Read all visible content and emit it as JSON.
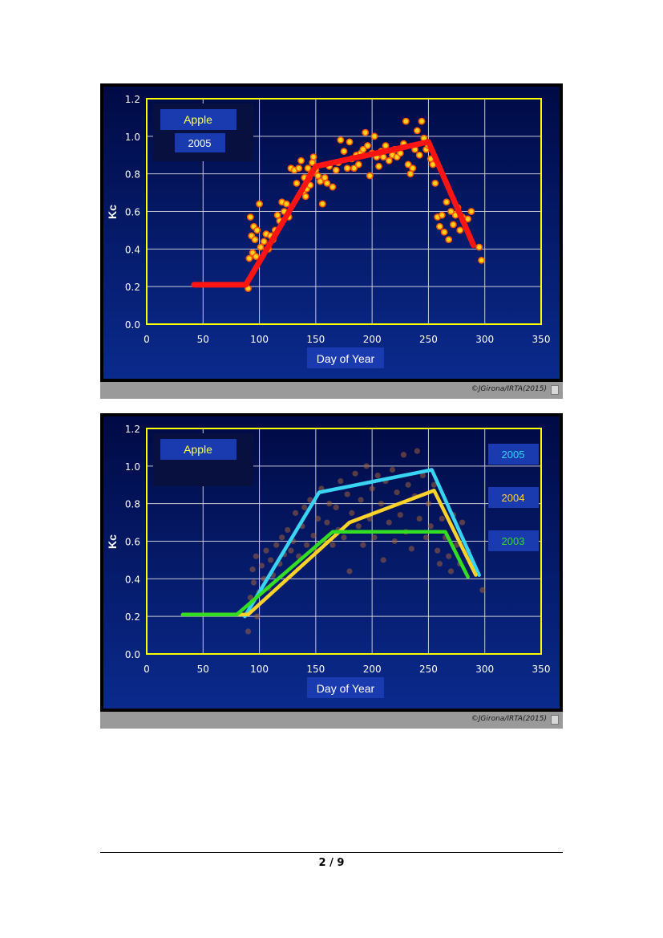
{
  "chart_data": [
    {
      "type": "scatter",
      "label_boxes": [
        "Apple",
        "2005"
      ],
      "xlabel": "Day of Year",
      "ylabel": "Kc",
      "xlim": [
        0,
        350
      ],
      "ylim": [
        0,
        1.2
      ],
      "xticks": [
        "0",
        "50",
        "100",
        "150",
        "200",
        "250",
        "300",
        "350"
      ],
      "yticks": [
        "0.0",
        "0.2",
        "0.4",
        "0.6",
        "0.8",
        "1.0",
        "1.2"
      ],
      "grid": true,
      "credit": "©JGirona/IRTA(2015)",
      "colors": {
        "points": "#ffd21e",
        "point_edge": "#ff5a00",
        "fit": "#ff1414",
        "plot_bg": "#0a1a66",
        "axis": "#ffff00"
      },
      "series": [
        {
          "name": "",
          "kind": "points",
          "x": [
            90,
            91,
            92,
            93,
            94,
            95,
            96,
            97,
            98,
            100,
            101,
            104,
            106,
            108,
            110,
            112,
            114,
            116,
            118,
            120,
            122,
            124,
            126,
            128,
            131,
            133,
            135,
            137,
            139,
            140,
            141,
            142,
            143,
            144,
            145,
            146,
            147,
            148,
            150,
            152,
            154,
            156,
            158,
            160,
            162,
            165,
            168,
            170,
            172,
            175,
            178,
            180,
            182,
            184,
            186,
            188,
            190,
            192,
            194,
            196,
            198,
            200,
            202,
            204,
            206,
            208,
            210,
            212,
            215,
            218,
            220,
            222,
            225,
            228,
            230,
            232,
            234,
            236,
            238,
            240,
            242,
            244,
            246,
            248,
            250,
            252,
            254,
            256,
            258,
            260,
            262,
            264,
            266,
            268,
            270,
            272,
            274,
            276,
            278,
            280,
            285,
            288,
            295,
            297
          ],
          "y": [
            0.19,
            0.35,
            0.57,
            0.47,
            0.38,
            0.52,
            0.45,
            0.36,
            0.5,
            0.64,
            0.41,
            0.44,
            0.48,
            0.4,
            0.47,
            0.45,
            0.5,
            0.58,
            0.55,
            0.65,
            0.6,
            0.64,
            0.57,
            0.83,
            0.82,
            0.75,
            0.83,
            0.87,
            0.71,
            0.78,
            0.68,
            0.72,
            0.83,
            0.78,
            0.74,
            0.8,
            0.86,
            0.89,
            0.82,
            0.79,
            0.76,
            0.64,
            0.78,
            0.75,
            0.84,
            0.73,
            0.82,
            0.86,
            0.98,
            0.92,
            0.83,
            0.97,
            0.88,
            0.83,
            0.9,
            0.85,
            0.91,
            0.93,
            1.02,
            0.95,
            0.79,
            0.91,
            1.0,
            0.89,
            0.84,
            0.92,
            0.89,
            0.95,
            0.87,
            0.9,
            0.93,
            0.89,
            0.91,
            0.96,
            1.08,
            0.85,
            0.8,
            0.83,
            0.93,
            1.03,
            0.9,
            1.08,
            0.99,
            0.93,
            0.95,
            0.88,
            0.85,
            0.75,
            0.57,
            0.52,
            0.58,
            0.49,
            0.65,
            0.45,
            0.6,
            0.53,
            0.58,
            0.62,
            0.5,
            0.57,
            0.56,
            0.6,
            0.41,
            0.34
          ]
        },
        {
          "name": "",
          "kind": "line",
          "x": [
            42,
            88,
            150,
            250,
            290
          ],
          "y": [
            0.21,
            0.21,
            0.84,
            0.97,
            0.42
          ]
        }
      ]
    },
    {
      "type": "line",
      "label_boxes": [
        "Apple"
      ],
      "xlabel": "Day of Year",
      "ylabel": "Kc",
      "xlim": [
        0,
        350
      ],
      "ylim": [
        0,
        1.2
      ],
      "xticks": [
        "0",
        "50",
        "100",
        "150",
        "200",
        "250",
        "300",
        "350"
      ],
      "yticks": [
        "0.0",
        "0.2",
        "0.4",
        "0.6",
        "0.8",
        "1.0",
        "1.2"
      ],
      "grid": true,
      "legend_position": "right",
      "credit": "©JGirona/IRTA(2015)",
      "colors": {
        "faded_points": "#a0603a",
        "plot_bg": "#0a1a66",
        "axis": "#ffff00"
      },
      "series": [
        {
          "name": "2005",
          "color": "#39d4f2",
          "x": [
            87,
            153,
            253,
            295
          ],
          "y": [
            0.2,
            0.86,
            0.98,
            0.42
          ]
        },
        {
          "name": "2004",
          "color": "#ffd22a",
          "x": [
            32,
            78,
            90,
            180,
            255,
            292
          ],
          "y": [
            0.21,
            0.21,
            0.21,
            0.7,
            0.87,
            0.42
          ]
        },
        {
          "name": "2003",
          "color": "#33dd22",
          "x": [
            32,
            80,
            165,
            265,
            285
          ],
          "y": [
            0.21,
            0.21,
            0.65,
            0.65,
            0.41
          ]
        }
      ],
      "background_points": {
        "x": [
          90,
          92,
          94,
          95,
          97,
          98,
          100,
          102,
          104,
          106,
          108,
          110,
          112,
          115,
          118,
          120,
          122,
          125,
          128,
          130,
          132,
          135,
          138,
          140,
          142,
          145,
          148,
          150,
          152,
          155,
          158,
          160,
          162,
          165,
          168,
          170,
          172,
          175,
          178,
          180,
          182,
          185,
          188,
          190,
          192,
          195,
          198,
          200,
          202,
          205,
          208,
          210,
          212,
          215,
          218,
          220,
          222,
          225,
          228,
          230,
          232,
          235,
          238,
          240,
          242,
          245,
          248,
          250,
          252,
          255,
          258,
          260,
          262,
          265,
          268,
          270,
          272,
          275,
          278,
          280,
          285,
          290,
          298
        ],
        "y": [
          0.12,
          0.3,
          0.45,
          0.38,
          0.52,
          0.2,
          0.33,
          0.47,
          0.4,
          0.55,
          0.35,
          0.5,
          0.42,
          0.58,
          0.48,
          0.62,
          0.53,
          0.66,
          0.55,
          0.6,
          0.75,
          0.52,
          0.68,
          0.78,
          0.58,
          0.82,
          0.63,
          0.55,
          0.72,
          0.88,
          0.6,
          0.7,
          0.8,
          0.58,
          0.78,
          0.66,
          0.92,
          0.62,
          0.85,
          0.44,
          0.75,
          0.96,
          0.68,
          0.82,
          0.58,
          1.0,
          0.72,
          0.88,
          0.62,
          0.95,
          0.8,
          0.5,
          0.92,
          0.7,
          0.98,
          0.6,
          0.86,
          0.74,
          1.06,
          0.65,
          0.9,
          0.56,
          0.84,
          1.08,
          0.72,
          0.95,
          0.62,
          0.8,
          0.68,
          0.9,
          0.55,
          0.48,
          0.72,
          0.62,
          0.52,
          0.44,
          0.74,
          0.58,
          0.48,
          0.7,
          0.55,
          0.46,
          0.34
        ]
      }
    }
  ],
  "page": {
    "number": "2 / 9"
  }
}
